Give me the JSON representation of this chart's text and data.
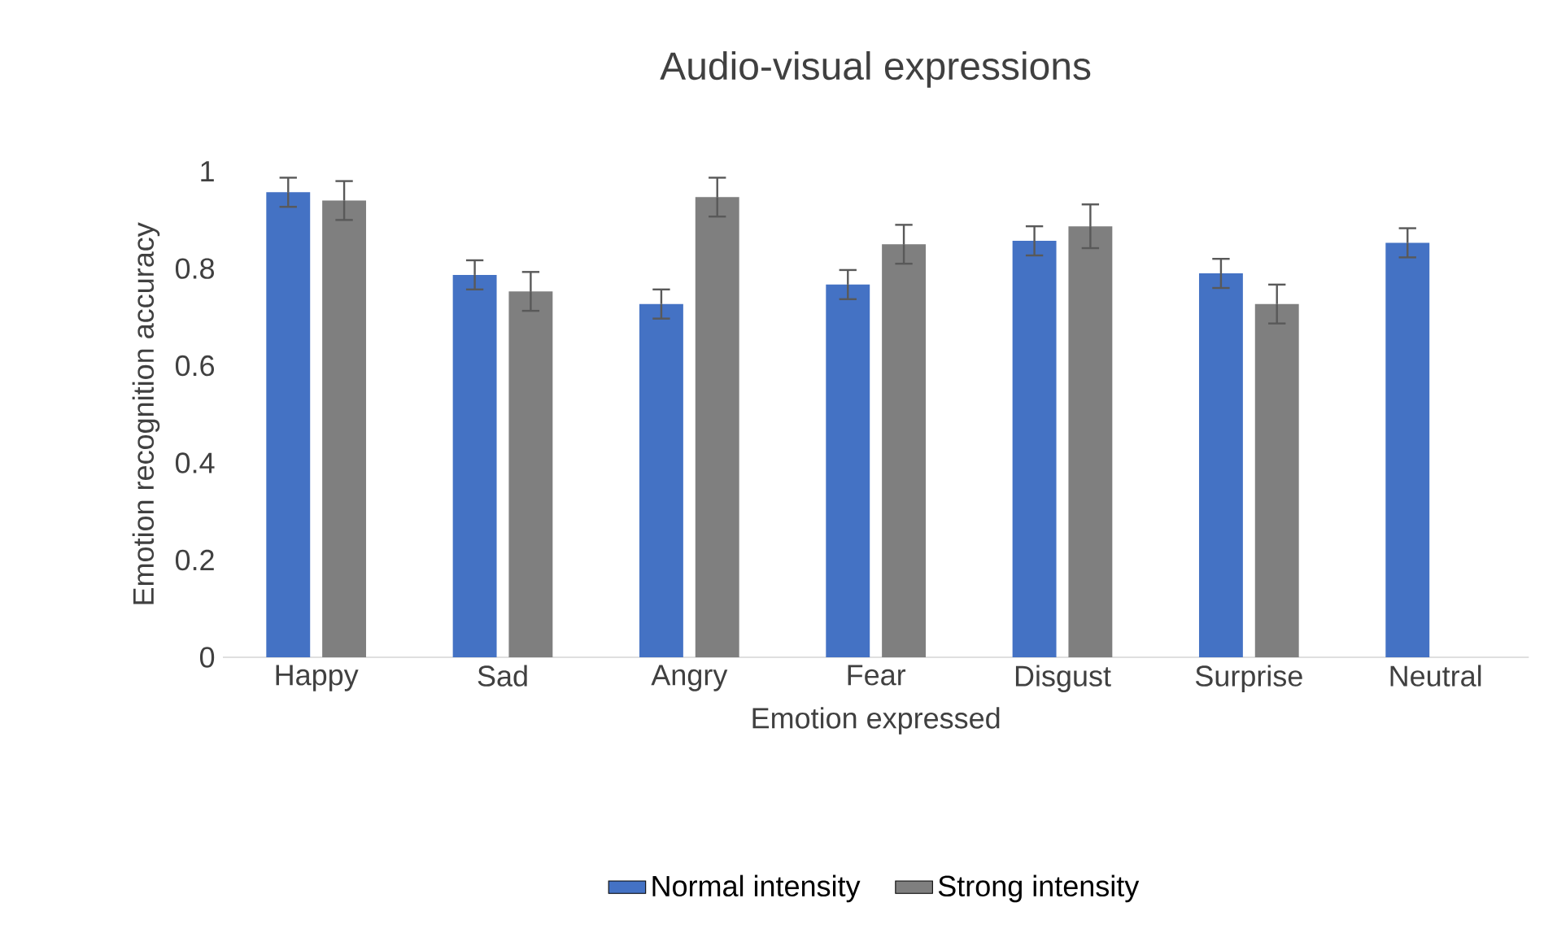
{
  "chart_data": {
    "type": "bar",
    "title": "Audio-visual expressions",
    "xlabel": "Emotion expressed",
    "ylabel": "Emotion recognition accuracy",
    "categories": [
      "Happy",
      "Sad",
      "Angry",
      "Fear",
      "Disgust",
      "Surprise",
      "Neutral"
    ],
    "series": [
      {
        "name": "Normal intensity",
        "color": "#4472c4",
        "values": [
          0.957,
          0.787,
          0.727,
          0.767,
          0.857,
          0.79,
          0.853
        ],
        "errors": [
          0.03,
          0.03,
          0.03,
          0.03,
          0.03,
          0.03,
          0.03
        ]
      },
      {
        "name": "Strong intensity",
        "color": "#7f7f7f",
        "values": [
          0.94,
          0.753,
          0.947,
          0.85,
          0.887,
          0.727,
          null
        ],
        "errors": [
          0.04,
          0.04,
          0.04,
          0.04,
          0.045,
          0.04,
          null
        ]
      }
    ],
    "ylim": [
      0,
      1
    ],
    "yticks": [
      0,
      0.2,
      0.4,
      0.6,
      0.8,
      1
    ],
    "legend": "bottom"
  }
}
